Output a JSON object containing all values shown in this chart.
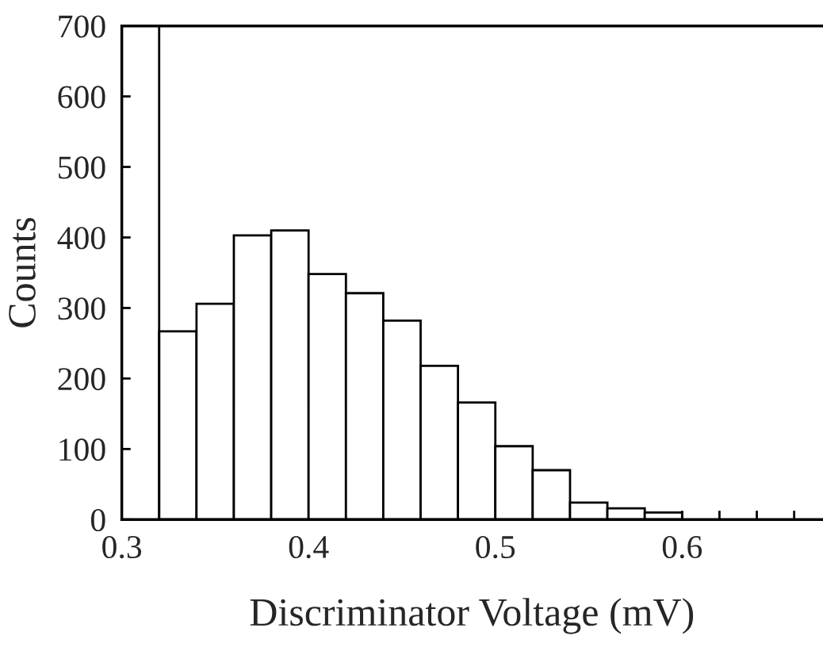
{
  "chart_data": {
    "type": "histogram",
    "xlabel": "Discriminator Voltage (mV)",
    "ylabel": "Counts",
    "bins": [
      0.32,
      0.34,
      0.36,
      0.38,
      0.4,
      0.42,
      0.44,
      0.46,
      0.48,
      0.5,
      0.52,
      0.54,
      0.56,
      0.58,
      0.6
    ],
    "values": [
      267,
      306,
      403,
      410,
      348,
      321,
      282,
      218,
      166,
      104,
      70,
      24,
      16,
      10
    ],
    "color": "#ffffff",
    "xlim": [
      0.3,
      0.675
    ],
    "xticks": [
      0.3,
      0.4,
      0.5,
      0.6,
      {
        "value": 0.62,
        "label": null
      },
      {
        "value": 0.64,
        "label": null
      },
      {
        "value": 0.66,
        "label": null
      }
    ],
    "ylim": [
      0,
      700
    ],
    "yticks": [
      0,
      100,
      200,
      300,
      400,
      500,
      600,
      700
    ],
    "ref_lines": [
      {
        "axis": "x",
        "value": 0.32,
        "label": null
      }
    ],
    "grid": false,
    "legend": false
  }
}
